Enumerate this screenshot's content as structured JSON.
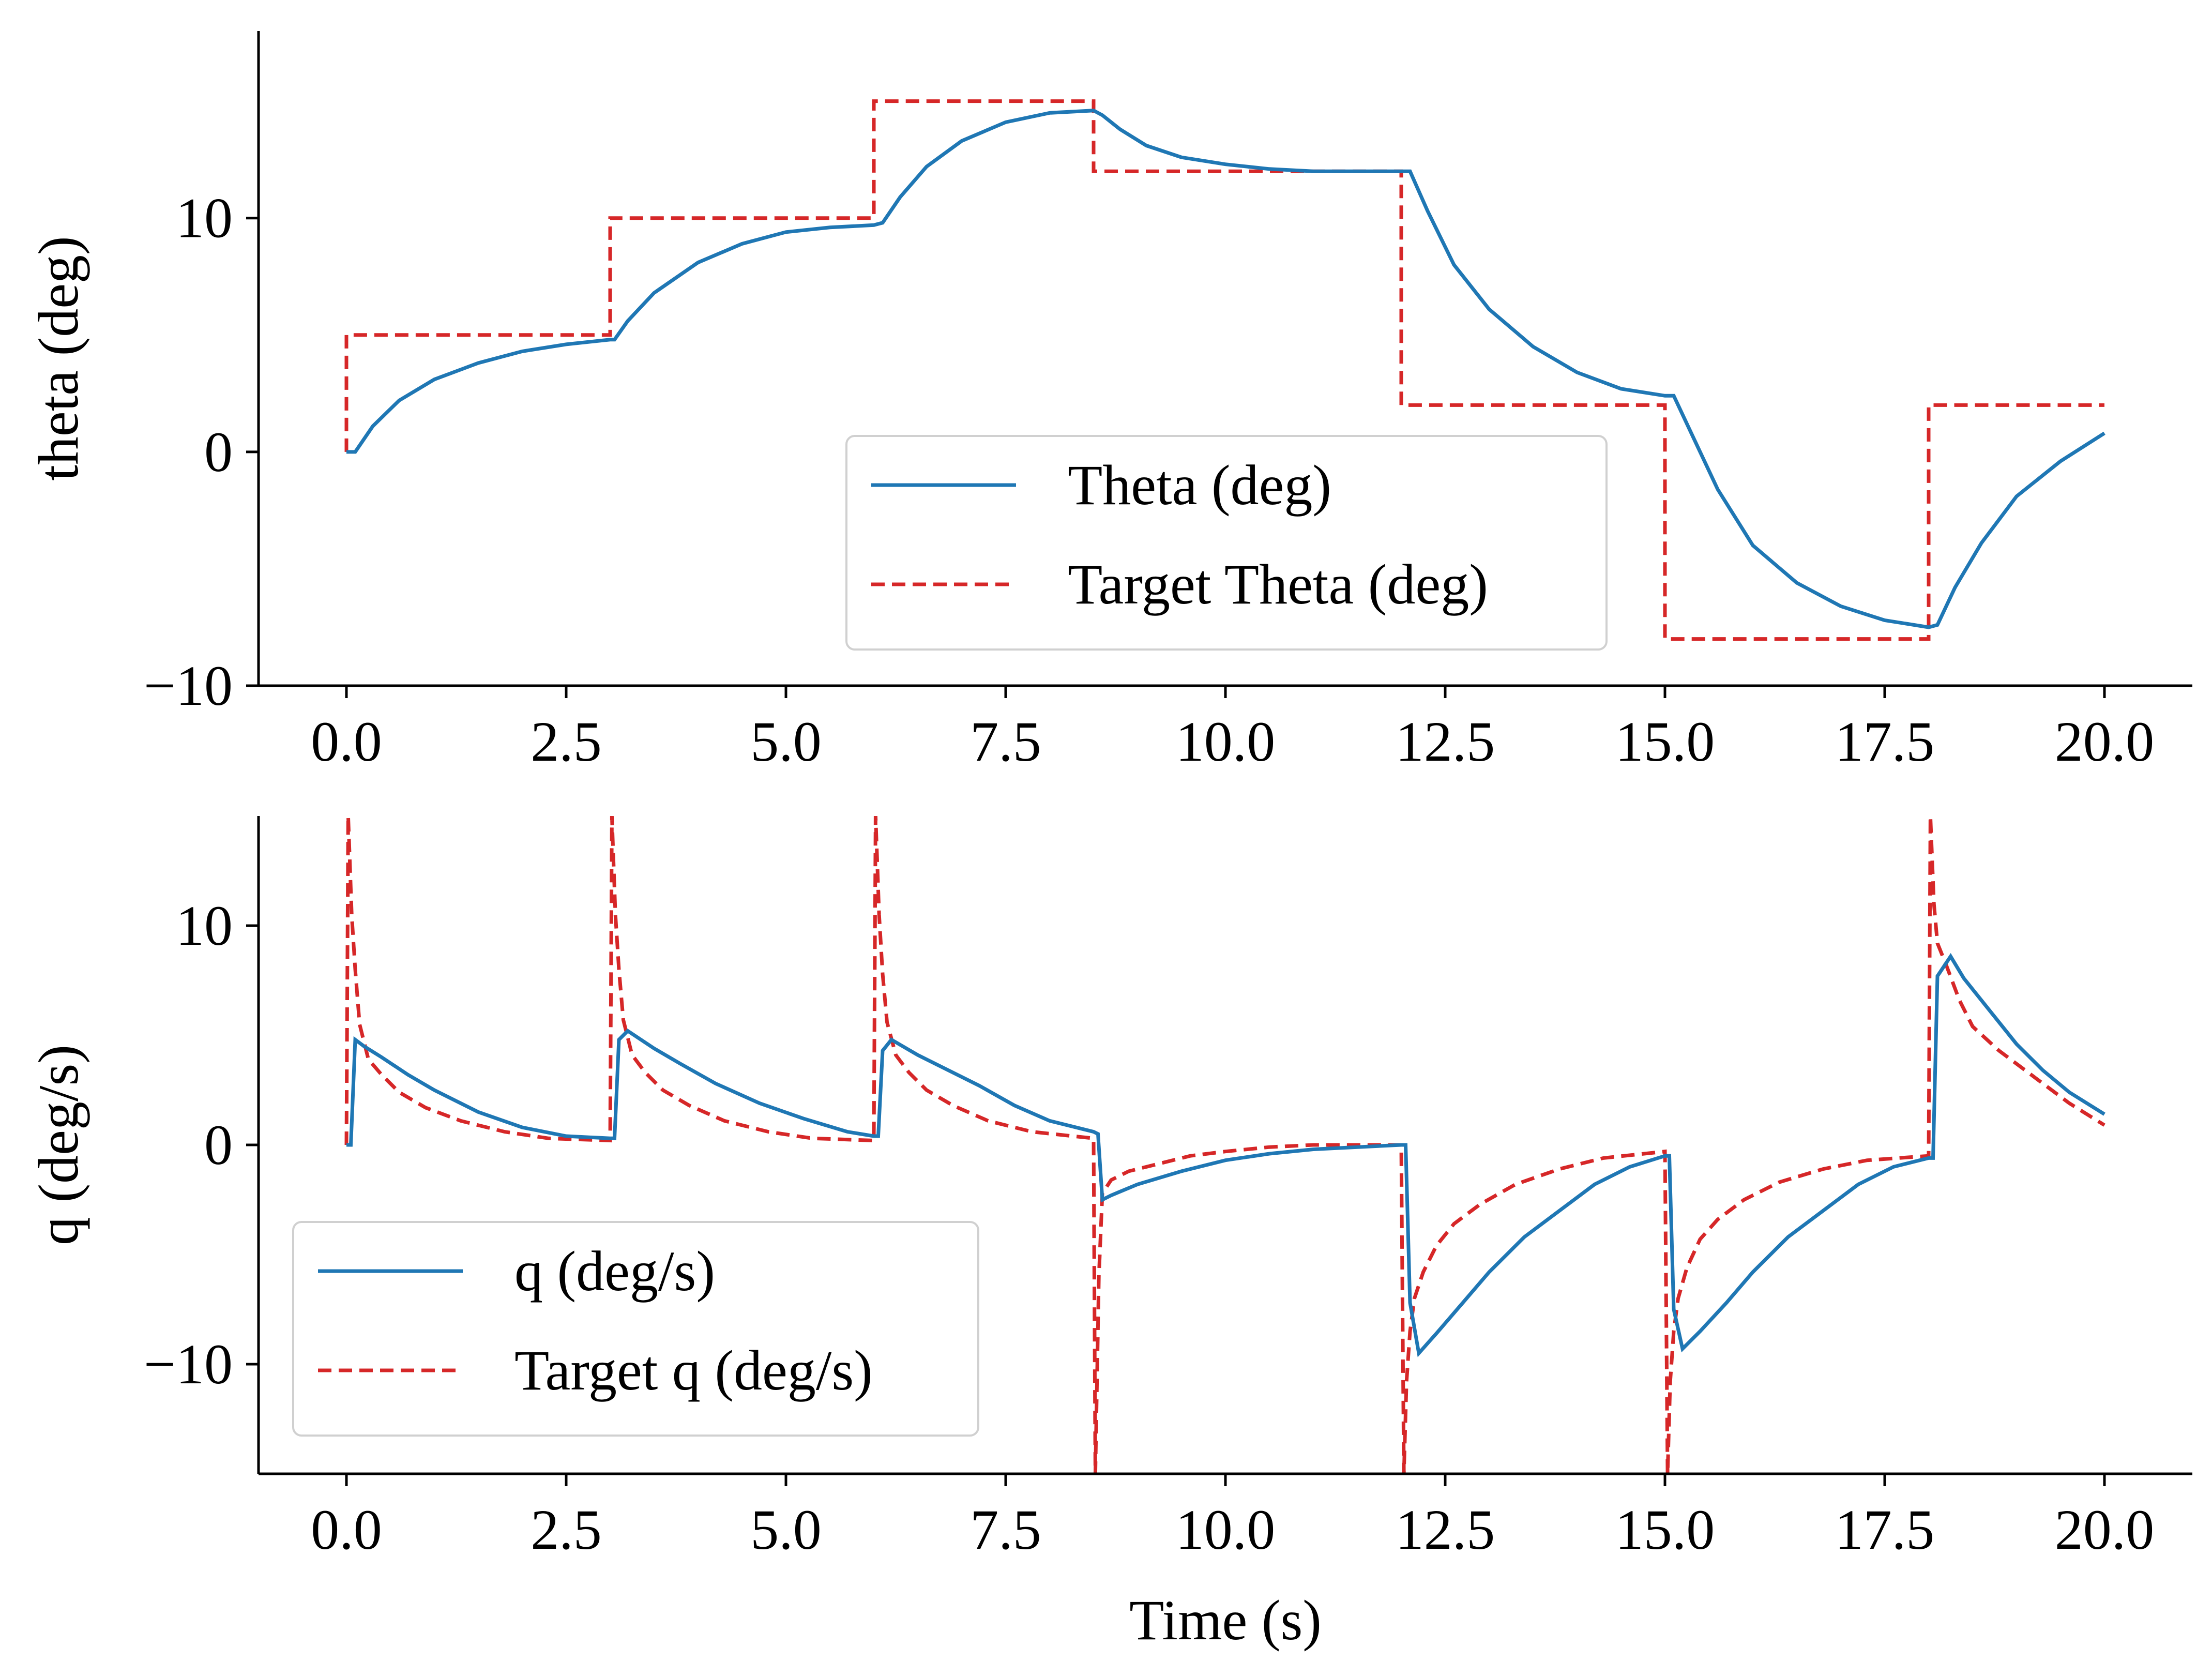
{
  "chart_data": [
    {
      "type": "line",
      "title": "",
      "xlabel": "",
      "ylabel": "theta (deg)",
      "xlim": [
        -1.0,
        21.0
      ],
      "ylim": [
        -10,
        18
      ],
      "xticks": [
        0.0,
        2.5,
        5.0,
        7.5,
        10.0,
        12.5,
        15.0,
        17.5,
        20.0
      ],
      "xtick_labels": [
        "0.0",
        "2.5",
        "5.0",
        "7.5",
        "10.0",
        "12.5",
        "15.0",
        "17.5",
        "20.0"
      ],
      "yticks": [
        -10,
        0,
        10
      ],
      "ytick_labels": [
        "−10",
        "0",
        "10"
      ],
      "grid": false,
      "legend_position": "lower-right",
      "series": [
        {
          "name": "Theta (deg)",
          "style": "solid",
          "color": "#1f77b4",
          "x": [
            0,
            0.1,
            0.3,
            0.6,
            1.0,
            1.5,
            2.0,
            2.5,
            3.0,
            3.05,
            3.2,
            3.5,
            4.0,
            4.5,
            5.0,
            5.5,
            6.0,
            6.1,
            6.3,
            6.6,
            7.0,
            7.5,
            8.0,
            8.5,
            8.6,
            8.8,
            9.1,
            9.5,
            10.0,
            10.5,
            11.0,
            11.5,
            12.0,
            12.1,
            12.3,
            12.6,
            13.0,
            13.5,
            14.0,
            14.5,
            15.0,
            15.1,
            15.3,
            15.6,
            16.0,
            16.5,
            17.0,
            17.5,
            18.0,
            18.1,
            18.3,
            18.6,
            19.0,
            19.5,
            20.0
          ],
          "y": [
            0,
            0.0,
            1.1,
            2.2,
            3.1,
            3.8,
            4.3,
            4.6,
            4.8,
            4.8,
            5.6,
            6.8,
            8.1,
            8.9,
            9.4,
            9.6,
            9.7,
            9.8,
            10.9,
            12.2,
            13.3,
            14.1,
            14.5,
            14.6,
            14.4,
            13.8,
            13.1,
            12.6,
            12.3,
            12.1,
            12.0,
            12.0,
            12.0,
            12.0,
            10.3,
            8.0,
            6.1,
            4.5,
            3.4,
            2.7,
            2.4,
            2.4,
            0.8,
            -1.6,
            -4.0,
            -5.6,
            -6.6,
            -7.2,
            -7.5,
            -7.4,
            -5.8,
            -3.9,
            -1.9,
            -0.4,
            0.8
          ]
        },
        {
          "name": "Target Theta (deg)",
          "style": "dashed",
          "color": "#d62728",
          "x": [
            0,
            0,
            3,
            3,
            6,
            6,
            8.5,
            8.5,
            12,
            12,
            15,
            15,
            18,
            18,
            20
          ],
          "y": [
            0,
            5,
            5,
            10,
            10,
            15,
            15,
            12,
            12,
            2,
            2,
            -8,
            -8,
            2,
            2
          ]
        }
      ]
    },
    {
      "type": "line",
      "title": "",
      "xlabel": "Time (s)",
      "ylabel": "q (deg/s)",
      "xlim": [
        -1.0,
        21.0
      ],
      "ylim": [
        -15,
        15
      ],
      "xticks": [
        0.0,
        2.5,
        5.0,
        7.5,
        10.0,
        12.5,
        15.0,
        17.5,
        20.0
      ],
      "xtick_labels": [
        "0.0",
        "2.5",
        "5.0",
        "7.5",
        "10.0",
        "12.5",
        "15.0",
        "17.5",
        "20.0"
      ],
      "yticks": [
        -10,
        0,
        10
      ],
      "ytick_labels": [
        "−10",
        "0",
        "10"
      ],
      "grid": false,
      "legend_position": "lower-left",
      "series": [
        {
          "name": "q (deg/s)",
          "style": "solid",
          "color": "#1f77b4",
          "x": [
            0,
            0.05,
            0.1,
            0.2,
            0.4,
            0.7,
            1.0,
            1.5,
            2.0,
            2.5,
            3.0,
            3.05,
            3.1,
            3.2,
            3.5,
            3.8,
            4.2,
            4.7,
            5.2,
            5.7,
            6.0,
            6.05,
            6.1,
            6.2,
            6.5,
            6.8,
            7.2,
            7.6,
            8.0,
            8.5,
            8.55,
            8.6,
            8.7,
            9.0,
            9.5,
            10.0,
            10.5,
            11.0,
            11.5,
            12.0,
            12.05,
            12.1,
            12.2,
            12.4,
            12.7,
            13.0,
            13.4,
            13.8,
            14.2,
            14.6,
            15.0,
            15.05,
            15.1,
            15.2,
            15.4,
            15.7,
            16.0,
            16.4,
            16.8,
            17.2,
            17.6,
            18.0,
            18.05,
            18.1,
            18.25,
            18.4,
            18.7,
            19.0,
            19.3,
            19.6,
            20.0
          ],
          "y": [
            0,
            0,
            4.8,
            4.5,
            4.0,
            3.2,
            2.5,
            1.5,
            0.8,
            0.4,
            0.3,
            0.3,
            4.8,
            5.2,
            4.4,
            3.7,
            2.8,
            1.9,
            1.2,
            0.6,
            0.4,
            0.4,
            4.3,
            4.8,
            4.1,
            3.5,
            2.7,
            1.8,
            1.1,
            0.6,
            0.5,
            -2.5,
            -2.3,
            -1.8,
            -1.2,
            -0.7,
            -0.4,
            -0.2,
            -0.1,
            0.0,
            0.0,
            -7.2,
            -9.5,
            -8.6,
            -7.2,
            -5.8,
            -4.2,
            -3.0,
            -1.8,
            -1.0,
            -0.5,
            -0.5,
            -7.5,
            -9.3,
            -8.5,
            -7.2,
            -5.8,
            -4.2,
            -3.0,
            -1.8,
            -1.0,
            -0.6,
            -0.6,
            7.7,
            8.6,
            7.6,
            6.1,
            4.6,
            3.4,
            2.4,
            1.4
          ]
        },
        {
          "name": "Target q (deg/s)",
          "style": "dashed",
          "color": "#d62728",
          "x": [
            0,
            0.02,
            0.06,
            0.1,
            0.15,
            0.25,
            0.4,
            0.6,
            0.9,
            1.3,
            1.8,
            2.3,
            3.0,
            3.02,
            3.06,
            3.1,
            3.15,
            3.25,
            3.4,
            3.6,
            3.9,
            4.3,
            4.8,
            5.3,
            6.0,
            6.02,
            6.06,
            6.1,
            6.15,
            6.25,
            6.4,
            6.6,
            6.9,
            7.3,
            7.8,
            8.5,
            8.52,
            8.56,
            8.6,
            8.7,
            8.9,
            9.2,
            9.6,
            10.0,
            10.5,
            11.0,
            11.5,
            12.0,
            12.03,
            12.06,
            12.1,
            12.15,
            12.25,
            12.4,
            12.6,
            12.9,
            13.3,
            13.8,
            14.3,
            15.0,
            15.03,
            15.06,
            15.1,
            15.15,
            15.25,
            15.4,
            15.6,
            15.9,
            16.3,
            16.8,
            17.3,
            18.0,
            18.02,
            18.06,
            18.1,
            18.2,
            18.35,
            18.5,
            18.8,
            19.2,
            19.6,
            20.0
          ],
          "y": [
            0,
            15,
            10.5,
            8.0,
            5.5,
            3.9,
            3.2,
            2.4,
            1.7,
            1.1,
            0.6,
            0.3,
            0.2,
            15,
            10.5,
            8.0,
            5.7,
            4.1,
            3.3,
            2.5,
            1.8,
            1.1,
            0.6,
            0.3,
            0.2,
            15,
            10.5,
            7.8,
            5.6,
            4.1,
            3.3,
            2.5,
            1.8,
            1.1,
            0.6,
            0.3,
            -15,
            -6.0,
            -2.2,
            -1.6,
            -1.2,
            -0.9,
            -0.5,
            -0.3,
            -0.1,
            0.0,
            0.0,
            0.0,
            -15,
            -10.8,
            -8.5,
            -7.0,
            -5.8,
            -4.6,
            -3.6,
            -2.7,
            -1.8,
            -1.1,
            -0.6,
            -0.3,
            -15,
            -10.8,
            -8.5,
            -7.0,
            -5.6,
            -4.3,
            -3.4,
            -2.5,
            -1.7,
            -1.1,
            -0.7,
            -0.5,
            15,
            11.0,
            9.2,
            8.2,
            6.6,
            5.4,
            4.3,
            3.1,
            1.9,
            0.9
          ]
        }
      ]
    }
  ]
}
